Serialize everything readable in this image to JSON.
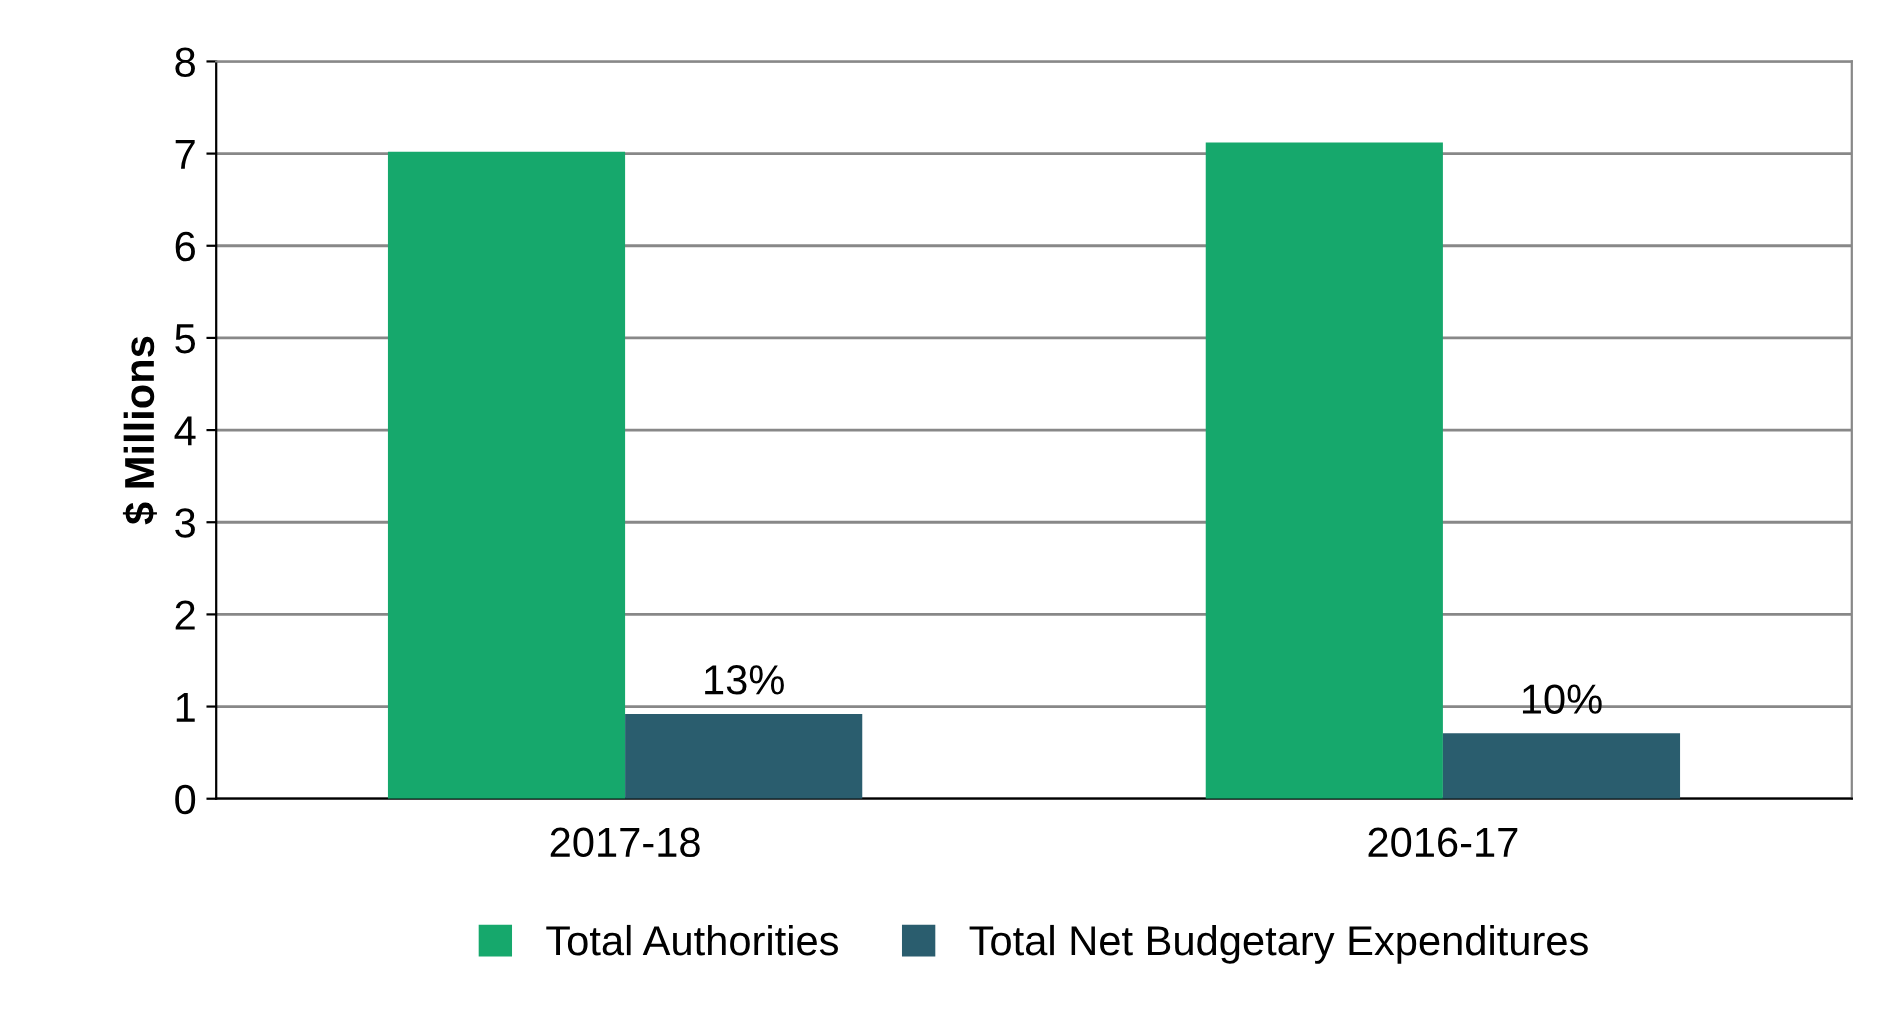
{
  "chart_data": {
    "type": "bar",
    "ylabel": "$ Millions",
    "categories": [
      "2017-18",
      "2016-17"
    ],
    "series": [
      {
        "name": "Total Authorities",
        "color": "#16a86c",
        "values": [
          7.02,
          7.12
        ]
      },
      {
        "name": "Total Net Budgetary Expenditures",
        "color": "#2a5d6e",
        "values": [
          0.92,
          0.71
        ]
      }
    ],
    "annotations": [
      {
        "text": "13%",
        "x": "2017-18",
        "y": 0.92
      },
      {
        "text": "10%",
        "x": "2016-17",
        "y": 0.71
      }
    ],
    "ylim": [
      0,
      8
    ],
    "yticks": [
      0,
      1,
      2,
      3,
      4,
      5,
      6,
      7,
      8
    ],
    "grid": "y",
    "legend": "bottom"
  }
}
